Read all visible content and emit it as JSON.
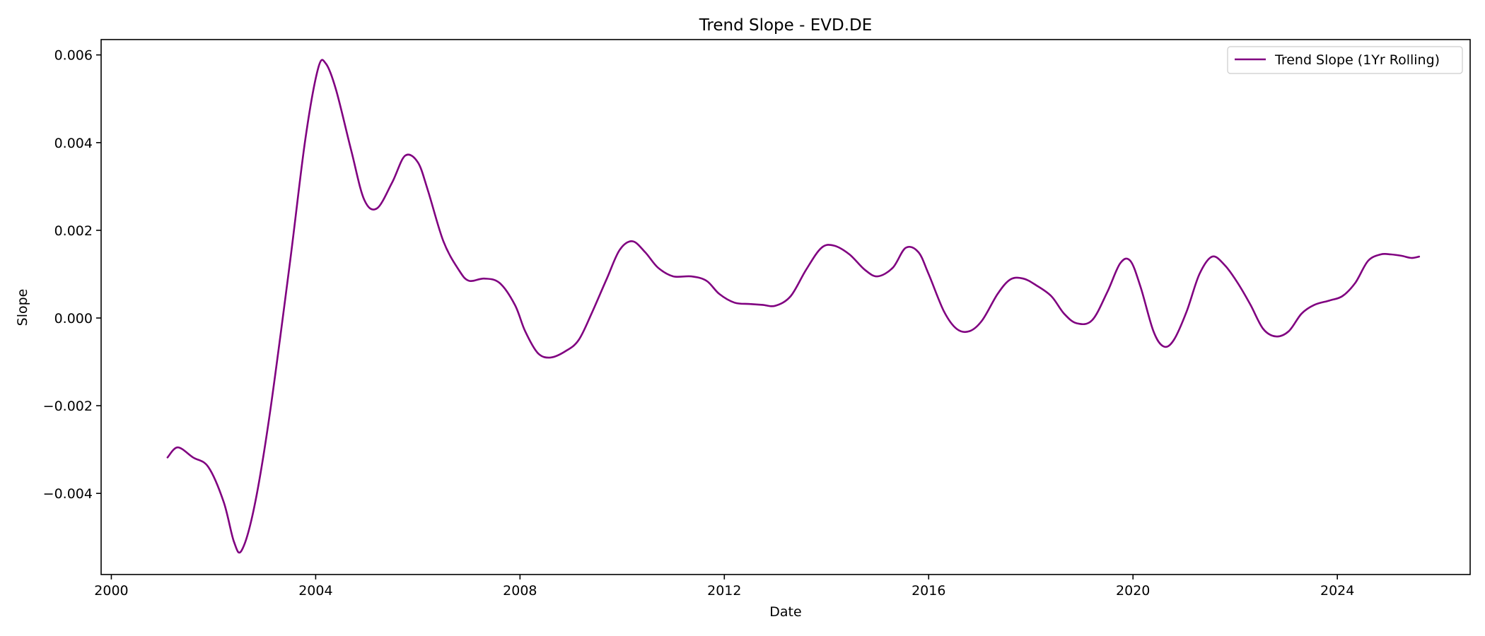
{
  "chart_data": {
    "type": "line",
    "title": "Trend Slope - EVD.DE",
    "xlabel": "Date",
    "ylabel": "Slope",
    "xlim": [
      1999.8,
      2026.6
    ],
    "ylim": [
      -0.00585,
      0.00635
    ],
    "x_ticks": [
      {
        "value": 2000,
        "label": "2000"
      },
      {
        "value": 2004,
        "label": "2004"
      },
      {
        "value": 2008,
        "label": "2008"
      },
      {
        "value": 2012,
        "label": "2012"
      },
      {
        "value": 2016,
        "label": "2016"
      },
      {
        "value": 2020,
        "label": "2020"
      },
      {
        "value": 2024,
        "label": "2024"
      }
    ],
    "y_ticks": [
      {
        "value": -0.004,
        "label": "−0.004"
      },
      {
        "value": -0.002,
        "label": "−0.002"
      },
      {
        "value": 0.0,
        "label": "0.000"
      },
      {
        "value": 0.002,
        "label": "0.002"
      },
      {
        "value": 0.004,
        "label": "0.004"
      },
      {
        "value": 0.006,
        "label": "0.006"
      }
    ],
    "grid": false,
    "legend": {
      "position": "upper-right"
    },
    "series": [
      {
        "name": "Trend Slope (1Yr Rolling)",
        "color": "#800080",
        "points": [
          [
            2001.1,
            -0.00318
          ],
          [
            2001.3,
            -0.00295
          ],
          [
            2001.6,
            -0.00318
          ],
          [
            2001.9,
            -0.0034
          ],
          [
            2002.2,
            -0.0042
          ],
          [
            2002.4,
            -0.0051
          ],
          [
            2002.55,
            -0.0053
          ],
          [
            2002.8,
            -0.0043
          ],
          [
            2003.1,
            -0.0022
          ],
          [
            2003.5,
            0.0013
          ],
          [
            2003.8,
            0.0041
          ],
          [
            2004.05,
            0.0057
          ],
          [
            2004.2,
            0.0058
          ],
          [
            2004.4,
            0.0052
          ],
          [
            2004.7,
            0.0038
          ],
          [
            2004.95,
            0.0027
          ],
          [
            2005.2,
            0.0025
          ],
          [
            2005.5,
            0.0031
          ],
          [
            2005.75,
            0.0037
          ],
          [
            2006.0,
            0.00355
          ],
          [
            2006.2,
            0.0029
          ],
          [
            2006.5,
            0.00175
          ],
          [
            2006.8,
            0.0011
          ],
          [
            2007.0,
            0.00085
          ],
          [
            2007.3,
            0.0009
          ],
          [
            2007.6,
            0.0008
          ],
          [
            2007.9,
            0.0003
          ],
          [
            2008.1,
            -0.0003
          ],
          [
            2008.35,
            -0.0008
          ],
          [
            2008.6,
            -0.0009
          ],
          [
            2008.9,
            -0.00075
          ],
          [
            2009.15,
            -0.0005
          ],
          [
            2009.4,
            0.0001
          ],
          [
            2009.7,
            0.0009
          ],
          [
            2009.95,
            0.00155
          ],
          [
            2010.2,
            0.00175
          ],
          [
            2010.45,
            0.0015
          ],
          [
            2010.7,
            0.00115
          ],
          [
            2011.0,
            0.00095
          ],
          [
            2011.35,
            0.00095
          ],
          [
            2011.65,
            0.00085
          ],
          [
            2011.9,
            0.00055
          ],
          [
            2012.2,
            0.00035
          ],
          [
            2012.5,
            0.00032
          ],
          [
            2012.75,
            0.0003
          ],
          [
            2013.0,
            0.00028
          ],
          [
            2013.3,
            0.0005
          ],
          [
            2013.6,
            0.0011
          ],
          [
            2013.9,
            0.0016
          ],
          [
            2014.15,
            0.00165
          ],
          [
            2014.45,
            0.00145
          ],
          [
            2014.75,
            0.0011
          ],
          [
            2015.0,
            0.00095
          ],
          [
            2015.3,
            0.00115
          ],
          [
            2015.55,
            0.0016
          ],
          [
            2015.8,
            0.0015
          ],
          [
            2016.0,
            0.001
          ],
          [
            2016.3,
            0.00015
          ],
          [
            2016.55,
            -0.00025
          ],
          [
            2016.8,
            -0.0003
          ],
          [
            2017.05,
            -5e-05
          ],
          [
            2017.35,
            0.00055
          ],
          [
            2017.6,
            0.00088
          ],
          [
            2017.85,
            0.0009
          ],
          [
            2018.1,
            0.00075
          ],
          [
            2018.4,
            0.0005
          ],
          [
            2018.65,
            0.0001
          ],
          [
            2018.9,
            -0.00012
          ],
          [
            2019.2,
            -5e-05
          ],
          [
            2019.5,
            0.0006
          ],
          [
            2019.75,
            0.00125
          ],
          [
            2019.95,
            0.0013
          ],
          [
            2020.15,
            0.0007
          ],
          [
            2020.4,
            -0.0003
          ],
          [
            2020.6,
            -0.00065
          ],
          [
            2020.8,
            -0.0005
          ],
          [
            2021.05,
            0.00015
          ],
          [
            2021.3,
            0.001
          ],
          [
            2021.55,
            0.0014
          ],
          [
            2021.8,
            0.0012
          ],
          [
            2022.05,
            0.0008
          ],
          [
            2022.3,
            0.0003
          ],
          [
            2022.55,
            -0.00025
          ],
          [
            2022.8,
            -0.00042
          ],
          [
            2023.05,
            -0.0003
          ],
          [
            2023.3,
            0.0001
          ],
          [
            2023.55,
            0.0003
          ],
          [
            2023.85,
            0.0004
          ],
          [
            2024.1,
            0.0005
          ],
          [
            2024.35,
            0.0008
          ],
          [
            2024.6,
            0.0013
          ],
          [
            2024.85,
            0.00145
          ],
          [
            2025.05,
            0.00145
          ],
          [
            2025.25,
            0.00142
          ],
          [
            2025.45,
            0.00137
          ],
          [
            2025.6,
            0.0014
          ]
        ]
      }
    ]
  }
}
